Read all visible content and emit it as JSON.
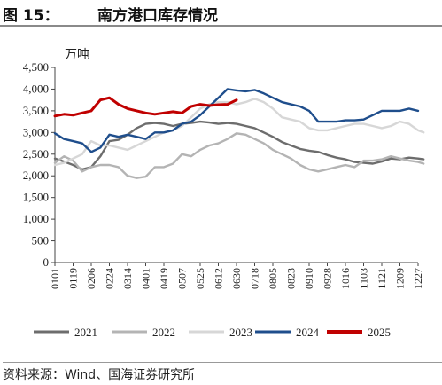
{
  "header": {
    "figure_label": "图 15：",
    "title": "南方港口库存情况"
  },
  "source": "资料来源：Wind、国海证券研究所",
  "colors": {
    "2021": "#6d6d6d",
    "2022": "#b4b4b4",
    "2023": "#d7d7d7",
    "2024": "#1f4e8c",
    "2025": "#c00000"
  },
  "chart_data": {
    "type": "line",
    "unit_label": "万吨",
    "ylim": [
      0,
      4500
    ],
    "yticks": [
      0,
      500,
      1000,
      1500,
      2000,
      2500,
      3000,
      3500,
      4000,
      4500
    ],
    "ytick_labels": [
      "0",
      "500",
      "1,000",
      "1,500",
      "2,000",
      "2,500",
      "3,000",
      "3,500",
      "4,000",
      "4,500"
    ],
    "xtick_labels": [
      "0101",
      "0119",
      "0206",
      "0224",
      "0314",
      "0401",
      "0419",
      "0507",
      "0525",
      "0612",
      "0630",
      "0718",
      "0805",
      "0823",
      "0910",
      "0928",
      "1016",
      "1103",
      "1121",
      "1209",
      "1227"
    ],
    "grid": false,
    "legend_position": "bottom",
    "series": [
      {
        "name": "2021",
        "points": [
          [
            0,
            2400
          ],
          [
            0.5,
            2330
          ],
          [
            1,
            2250
          ],
          [
            1.5,
            2150
          ],
          [
            2,
            2200
          ],
          [
            2.5,
            2450
          ],
          [
            3,
            2800
          ],
          [
            3.5,
            2830
          ],
          [
            4,
            2950
          ],
          [
            4.5,
            3100
          ],
          [
            5,
            3200
          ],
          [
            5.5,
            3220
          ],
          [
            6,
            3200
          ],
          [
            6.5,
            3150
          ],
          [
            7,
            3200
          ],
          [
            7.5,
            3220
          ],
          [
            8,
            3250
          ],
          [
            8.5,
            3230
          ],
          [
            9,
            3200
          ],
          [
            9.5,
            3220
          ],
          [
            10,
            3200
          ],
          [
            10.5,
            3150
          ],
          [
            11,
            3100
          ],
          [
            11.5,
            3000
          ],
          [
            12,
            2900
          ],
          [
            12.5,
            2780
          ],
          [
            13,
            2700
          ],
          [
            13.5,
            2620
          ],
          [
            14,
            2580
          ],
          [
            14.5,
            2550
          ],
          [
            15,
            2480
          ],
          [
            15.5,
            2420
          ],
          [
            16,
            2380
          ],
          [
            16.5,
            2320
          ],
          [
            17,
            2300
          ],
          [
            17.5,
            2280
          ],
          [
            18,
            2330
          ],
          [
            18.5,
            2400
          ],
          [
            19,
            2380
          ],
          [
            19.5,
            2420
          ],
          [
            20,
            2400
          ],
          [
            20.3,
            2380
          ]
        ]
      },
      {
        "name": "2022",
        "points": [
          [
            0,
            2300
          ],
          [
            0.5,
            2450
          ],
          [
            1,
            2350
          ],
          [
            1.5,
            2100
          ],
          [
            2,
            2200
          ],
          [
            2.5,
            2250
          ],
          [
            3,
            2250
          ],
          [
            3.5,
            2200
          ],
          [
            4,
            2000
          ],
          [
            4.5,
            1950
          ],
          [
            5,
            1980
          ],
          [
            5.5,
            2200
          ],
          [
            6,
            2200
          ],
          [
            6.5,
            2280
          ],
          [
            7,
            2500
          ],
          [
            7.5,
            2450
          ],
          [
            8,
            2600
          ],
          [
            8.5,
            2700
          ],
          [
            9,
            2750
          ],
          [
            9.5,
            2850
          ],
          [
            10,
            2980
          ],
          [
            10.5,
            2950
          ],
          [
            11,
            2850
          ],
          [
            11.5,
            2750
          ],
          [
            12,
            2600
          ],
          [
            12.5,
            2500
          ],
          [
            13,
            2400
          ],
          [
            13.5,
            2250
          ],
          [
            14,
            2150
          ],
          [
            14.5,
            2100
          ],
          [
            15,
            2150
          ],
          [
            15.5,
            2200
          ],
          [
            16,
            2250
          ],
          [
            16.5,
            2200
          ],
          [
            17,
            2350
          ],
          [
            17.5,
            2350
          ],
          [
            18,
            2380
          ],
          [
            18.5,
            2450
          ],
          [
            19,
            2400
          ],
          [
            19.5,
            2350
          ],
          [
            20,
            2320
          ],
          [
            20.3,
            2280
          ]
        ]
      },
      {
        "name": "2023",
        "points": [
          [
            0,
            2250
          ],
          [
            0.5,
            2300
          ],
          [
            1,
            2400
          ],
          [
            1.5,
            2500
          ],
          [
            2,
            2800
          ],
          [
            2.5,
            2700
          ],
          [
            3,
            2700
          ],
          [
            3.5,
            2650
          ],
          [
            4,
            2600
          ],
          [
            4.5,
            2700
          ],
          [
            5,
            2800
          ],
          [
            5.5,
            2900
          ],
          [
            6,
            3000
          ],
          [
            6.5,
            3050
          ],
          [
            7,
            3150
          ],
          [
            7.5,
            3350
          ],
          [
            8,
            3550
          ],
          [
            8.5,
            3650
          ],
          [
            9,
            3700
          ],
          [
            9.5,
            3700
          ],
          [
            10,
            3650
          ],
          [
            10.5,
            3700
          ],
          [
            11,
            3780
          ],
          [
            11.5,
            3700
          ],
          [
            12,
            3550
          ],
          [
            12.5,
            3350
          ],
          [
            13,
            3300
          ],
          [
            13.5,
            3250
          ],
          [
            14,
            3100
          ],
          [
            14.5,
            3050
          ],
          [
            15,
            3050
          ],
          [
            15.5,
            3100
          ],
          [
            16,
            3150
          ],
          [
            16.5,
            3200
          ],
          [
            17,
            3200
          ],
          [
            17.5,
            3150
          ],
          [
            18,
            3100
          ],
          [
            18.5,
            3150
          ],
          [
            19,
            3250
          ],
          [
            19.5,
            3200
          ],
          [
            20,
            3050
          ],
          [
            20.3,
            3000
          ]
        ]
      },
      {
        "name": "2024",
        "points": [
          [
            0,
            2980
          ],
          [
            0.5,
            2850
          ],
          [
            1,
            2800
          ],
          [
            1.5,
            2750
          ],
          [
            2,
            2550
          ],
          [
            2.5,
            2650
          ],
          [
            3,
            2950
          ],
          [
            3.5,
            2900
          ],
          [
            4,
            2950
          ],
          [
            4.5,
            2900
          ],
          [
            5,
            2850
          ],
          [
            5.5,
            3000
          ],
          [
            6,
            3000
          ],
          [
            6.5,
            3050
          ],
          [
            7,
            3200
          ],
          [
            7.5,
            3250
          ],
          [
            8,
            3400
          ],
          [
            8.5,
            3600
          ],
          [
            9,
            3800
          ],
          [
            9.5,
            4000
          ],
          [
            10,
            3970
          ],
          [
            10.5,
            3950
          ],
          [
            11,
            3980
          ],
          [
            11.5,
            3900
          ],
          [
            12,
            3800
          ],
          [
            12.5,
            3700
          ],
          [
            13,
            3650
          ],
          [
            13.5,
            3600
          ],
          [
            14,
            3500
          ],
          [
            14.5,
            3250
          ],
          [
            15,
            3250
          ],
          [
            15.5,
            3250
          ],
          [
            16,
            3280
          ],
          [
            16.5,
            3280
          ],
          [
            17,
            3300
          ],
          [
            17.5,
            3400
          ],
          [
            18,
            3500
          ],
          [
            18.5,
            3500
          ],
          [
            19,
            3500
          ],
          [
            19.5,
            3550
          ],
          [
            20,
            3500
          ]
        ]
      },
      {
        "name": "2025",
        "points": [
          [
            0,
            3380
          ],
          [
            0.5,
            3420
          ],
          [
            1,
            3400
          ],
          [
            1.5,
            3450
          ],
          [
            2,
            3500
          ],
          [
            2.5,
            3750
          ],
          [
            3,
            3800
          ],
          [
            3.5,
            3650
          ],
          [
            4,
            3550
          ],
          [
            4.5,
            3500
          ],
          [
            5,
            3450
          ],
          [
            5.5,
            3420
          ],
          [
            6,
            3450
          ],
          [
            6.5,
            3480
          ],
          [
            7,
            3450
          ],
          [
            7.5,
            3600
          ],
          [
            8,
            3650
          ],
          [
            8.5,
            3620
          ],
          [
            9,
            3640
          ],
          [
            9.5,
            3650
          ],
          [
            10,
            3750
          ]
        ]
      }
    ]
  }
}
